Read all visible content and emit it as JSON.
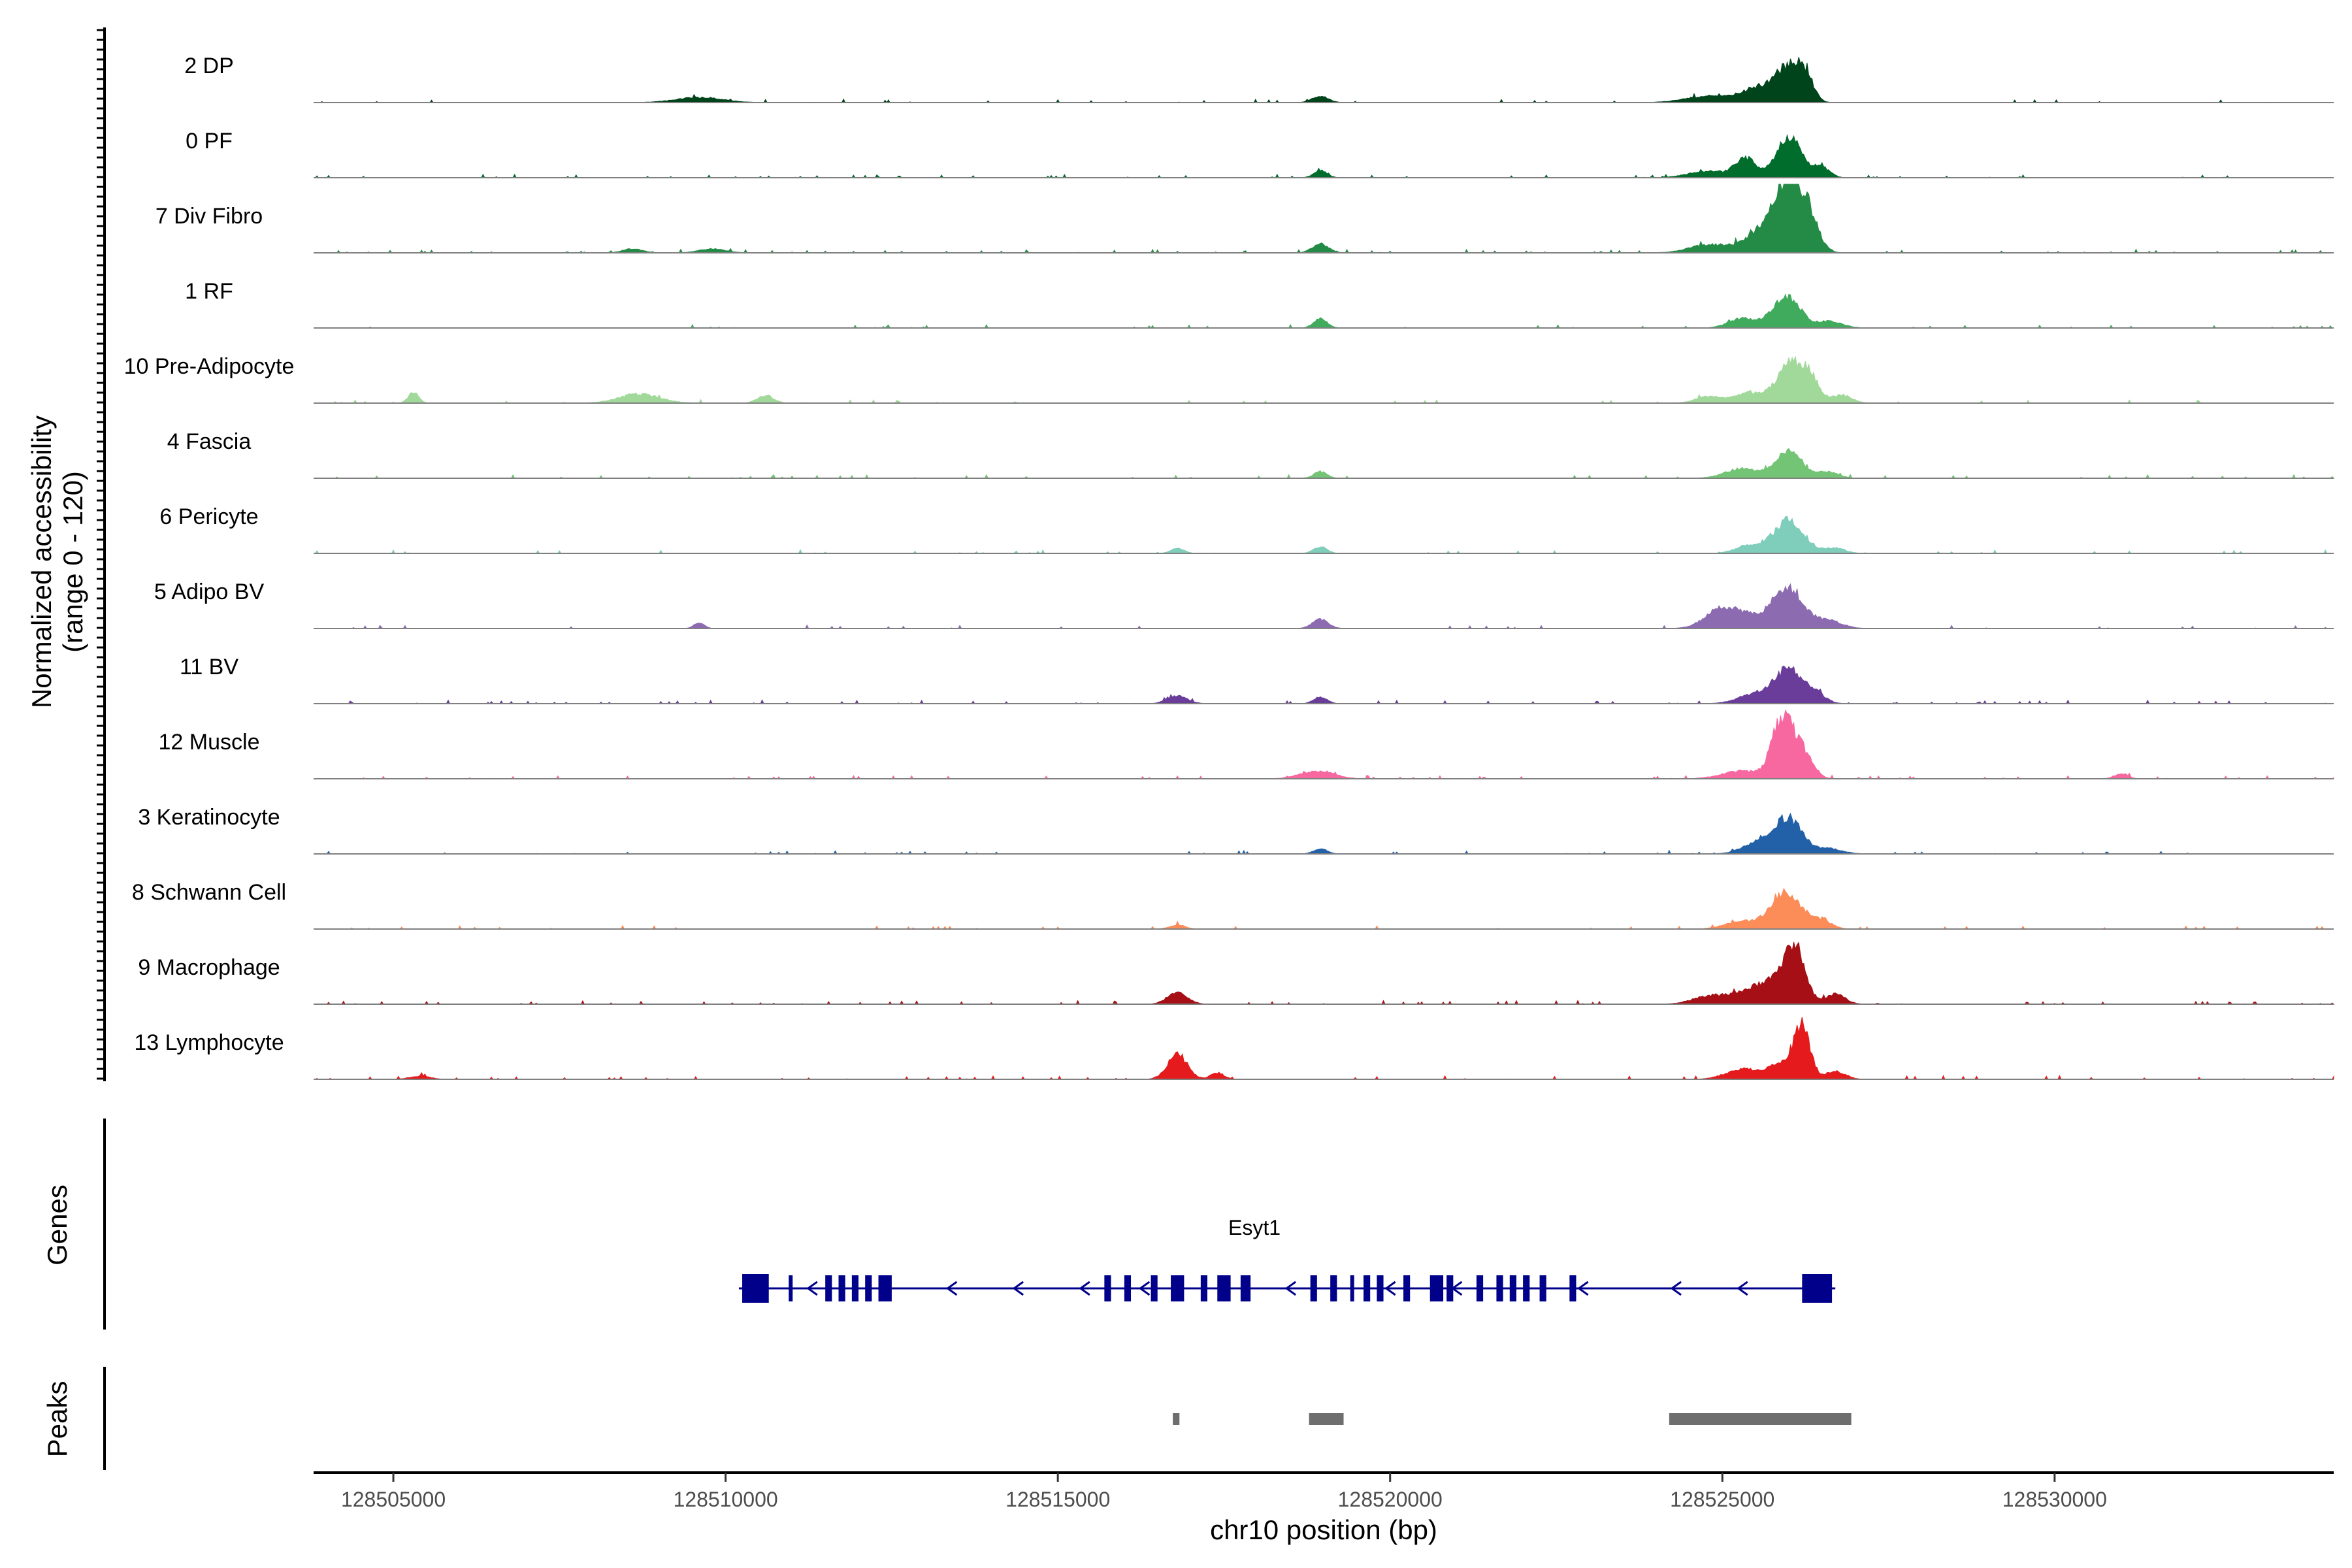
{
  "chart_data": {
    "type": "coverage-track",
    "ylabel_line1": "Normalized accessibility",
    "ylabel_line2": "(range 0 - 120)",
    "y_range": [
      0,
      120
    ],
    "xlabel": "chr10 position (bp)",
    "x_range": [
      128503800,
      128534200
    ],
    "x_ticks": [
      {
        "value": 128505000,
        "label": "128505000"
      },
      {
        "value": 128510000,
        "label": "128510000"
      },
      {
        "value": 128515000,
        "label": "128515000"
      },
      {
        "value": 128520000,
        "label": "128520000"
      },
      {
        "value": 128525000,
        "label": "128525000"
      },
      {
        "value": 128530000,
        "label": "128530000"
      }
    ],
    "panel_labels": {
      "genes": "Genes",
      "peaks": "Peaks"
    },
    "tracks": [
      {
        "name": "2 DP",
        "color": "#00441b",
        "noise": 0.05,
        "peaks": [
          [
            128509600,
            350,
            8
          ],
          [
            128518950,
            120,
            10
          ],
          [
            128524800,
            350,
            10
          ],
          [
            128525550,
            250,
            22
          ],
          [
            128526000,
            180,
            52
          ],
          [
            128526250,
            120,
            34
          ]
        ]
      },
      {
        "name": "0 PF",
        "color": "#006d2c",
        "noise": 0.05,
        "peaks": [
          [
            128518950,
            100,
            11
          ],
          [
            128524800,
            300,
            10
          ],
          [
            128525350,
            150,
            28
          ],
          [
            128526000,
            200,
            60
          ],
          [
            128526500,
            120,
            15
          ]
        ]
      },
      {
        "name": "7 Div Fibro",
        "color": "#238b45",
        "noise": 0.06,
        "peaks": [
          [
            128508600,
            150,
            6
          ],
          [
            128509800,
            200,
            6
          ],
          [
            128518950,
            120,
            14
          ],
          [
            128524800,
            300,
            12
          ],
          [
            128525700,
            300,
            40
          ],
          [
            128526000,
            180,
            90
          ],
          [
            128526300,
            150,
            50
          ]
        ]
      },
      {
        "name": "1 RF",
        "color": "#41ab5d",
        "noise": 0.05,
        "peaks": [
          [
            128518950,
            100,
            14
          ],
          [
            128525300,
            200,
            15
          ],
          [
            128525750,
            150,
            12
          ],
          [
            128526000,
            180,
            45
          ],
          [
            128526600,
            200,
            10
          ]
        ]
      },
      {
        "name": "10 Pre-Adipocyte",
        "color": "#a1d99b",
        "noise": 0.05,
        "peaks": [
          [
            128505300,
            80,
            16
          ],
          [
            128508700,
            300,
            14
          ],
          [
            128510600,
            120,
            12
          ],
          [
            128524800,
            200,
            10
          ],
          [
            128525400,
            200,
            16
          ],
          [
            128526000,
            200,
            55
          ],
          [
            128526300,
            150,
            35
          ],
          [
            128526800,
            150,
            12
          ]
        ]
      },
      {
        "name": "4 Fascia",
        "color": "#74c476",
        "noise": 0.05,
        "peaks": [
          [
            128518950,
            100,
            10
          ],
          [
            128525300,
            250,
            15
          ],
          [
            128526000,
            200,
            42
          ],
          [
            128526600,
            150,
            10
          ]
        ]
      },
      {
        "name": "6 Pericyte",
        "color": "#7fcdbb",
        "noise": 0.04,
        "peaks": [
          [
            128516800,
            100,
            8
          ],
          [
            128518950,
            100,
            10
          ],
          [
            128525400,
            200,
            12
          ],
          [
            128526000,
            230,
            50
          ],
          [
            128526700,
            150,
            8
          ]
        ]
      },
      {
        "name": "5 Adipo BV",
        "color": "#8c6bb1",
        "noise": 0.04,
        "peaks": [
          [
            128509600,
            80,
            8
          ],
          [
            128518950,
            120,
            14
          ],
          [
            128525000,
            250,
            30
          ],
          [
            128525500,
            250,
            15
          ],
          [
            128526000,
            220,
            62
          ],
          [
            128526600,
            200,
            12
          ]
        ]
      },
      {
        "name": "11 BV",
        "color": "#6a3d9a",
        "noise": 0.07,
        "peaks": [
          [
            128516800,
            150,
            12
          ],
          [
            128518950,
            100,
            10
          ],
          [
            128525500,
            250,
            15
          ],
          [
            128526000,
            200,
            52
          ],
          [
            128526400,
            150,
            15
          ]
        ]
      },
      {
        "name": "12 Muscle",
        "color": "#f768a1",
        "noise": 0.07,
        "peaks": [
          [
            128518900,
            250,
            12
          ],
          [
            128525300,
            300,
            12
          ],
          [
            128525900,
            150,
            90
          ],
          [
            128526200,
            150,
            40
          ],
          [
            128531000,
            100,
            8
          ]
        ]
      },
      {
        "name": "3 Keratinocyte",
        "color": "#2260a8",
        "noise": 0.05,
        "peaks": [
          [
            128518950,
            100,
            8
          ],
          [
            128525600,
            250,
            20
          ],
          [
            128526000,
            200,
            50
          ],
          [
            128526600,
            200,
            8
          ]
        ]
      },
      {
        "name": "8 Schwann Cell",
        "color": "#fc8d59",
        "noise": 0.05,
        "peaks": [
          [
            128516800,
            120,
            6
          ],
          [
            128525300,
            250,
            12
          ],
          [
            128525800,
            150,
            15
          ],
          [
            128526000,
            220,
            48
          ],
          [
            128526500,
            150,
            12
          ]
        ]
      },
      {
        "name": "9 Macrophage",
        "color": "#a50f15",
        "noise": 0.07,
        "peaks": [
          [
            128516800,
            150,
            18
          ],
          [
            128524800,
            250,
            12
          ],
          [
            128525400,
            250,
            20
          ],
          [
            128525800,
            200,
            30
          ],
          [
            128526100,
            150,
            80
          ],
          [
            128526700,
            150,
            15
          ]
        ]
      },
      {
        "name": "13 Lymphocyte",
        "color": "#e41a1c",
        "noise": 0.07,
        "peaks": [
          [
            128505400,
            150,
            5
          ],
          [
            128516800,
            150,
            38
          ],
          [
            128517400,
            100,
            10
          ],
          [
            128525300,
            250,
            15
          ],
          [
            128525900,
            200,
            25
          ],
          [
            128526200,
            120,
            75
          ],
          [
            128526700,
            150,
            12
          ]
        ]
      }
    ],
    "gene": {
      "name": "Esyt1",
      "strand": "-",
      "color": "#00008b",
      "start": 128510200,
      "end": 128526700,
      "exons": [
        [
          128510250,
          128510650
        ],
        [
          128510950,
          128511000
        ],
        [
          128511500,
          128511600
        ],
        [
          128511700,
          128511800
        ],
        [
          128511900,
          128512000
        ],
        [
          128512100,
          128512200
        ],
        [
          128512300,
          128512500
        ],
        [
          128515700,
          128515800
        ],
        [
          128516000,
          128516100
        ],
        [
          128516400,
          128516500
        ],
        [
          128516700,
          128516900
        ],
        [
          128517150,
          128517250
        ],
        [
          128517400,
          128517600
        ],
        [
          128517750,
          128517900
        ],
        [
          128518800,
          128518900
        ],
        [
          128519100,
          128519200
        ],
        [
          128519400,
          128519450
        ],
        [
          128519600,
          128519700
        ],
        [
          128519800,
          128519900
        ],
        [
          128520200,
          128520300
        ],
        [
          128520600,
          128520800
        ],
        [
          128520850,
          128520950
        ],
        [
          128521300,
          128521400
        ],
        [
          128521600,
          128521700
        ],
        [
          128521800,
          128521900
        ],
        [
          128522000,
          128522100
        ],
        [
          128522250,
          128522350
        ],
        [
          128522700,
          128522800
        ],
        [
          128526200,
          128526650
        ]
      ],
      "arrows": [
        128511300,
        128513400,
        128514400,
        128515400,
        128516300,
        128518500,
        128520000,
        128521000,
        128522900,
        128524300,
        128525300
      ]
    },
    "peaks_track": {
      "color": "#6e6e6e",
      "regions": [
        [
          128516730,
          128516830
        ],
        [
          128518780,
          128519300
        ],
        [
          128524200,
          128526940
        ]
      ]
    }
  }
}
